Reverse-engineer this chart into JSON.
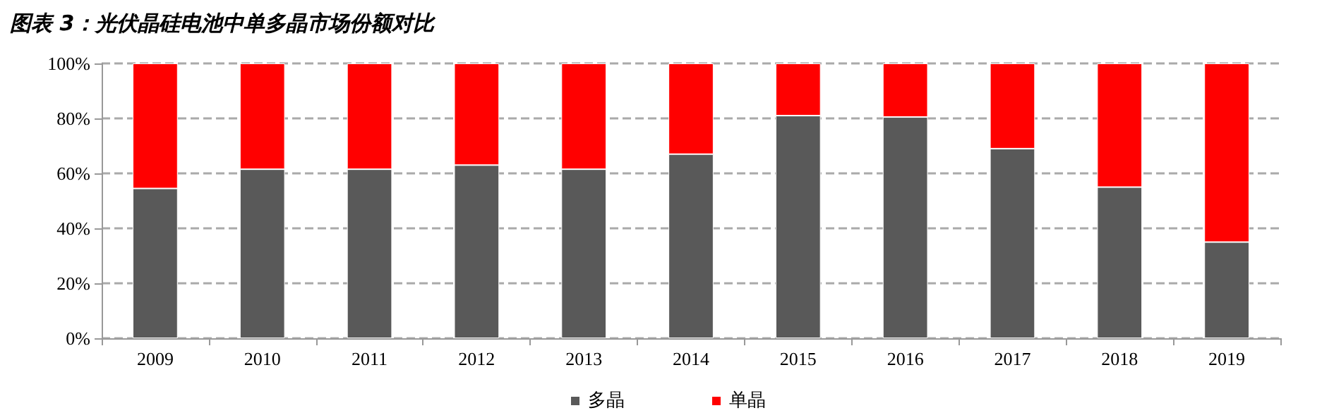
{
  "chart_data": {
    "type": "bar",
    "title": "图表 3：光伏晶硅电池中单多晶市场份额对比",
    "categories": [
      "2009",
      "2010",
      "2011",
      "2012",
      "2013",
      "2014",
      "2015",
      "2016",
      "2017",
      "2018",
      "2019"
    ],
    "stacked": true,
    "series": [
      {
        "name": "多晶",
        "color": "#595959",
        "values": [
          54.5,
          61.5,
          61.5,
          63,
          61.5,
          67,
          81,
          80.5,
          69,
          55,
          35
        ]
      },
      {
        "name": "单晶",
        "color": "#ff0000",
        "values": [
          45.5,
          38.5,
          38.5,
          37,
          38.5,
          33,
          19,
          19.5,
          31,
          45,
          65
        ]
      }
    ],
    "ylim": [
      0,
      100
    ],
    "yticks": [
      {
        "value": 0,
        "label": "0%"
      },
      {
        "value": 20,
        "label": "20%"
      },
      {
        "value": 40,
        "label": "40%"
      },
      {
        "value": 60,
        "label": "60%"
      },
      {
        "value": 80,
        "label": "80%"
      },
      {
        "value": 100,
        "label": "100%"
      }
    ],
    "grid": "y",
    "legend": "bottom"
  }
}
